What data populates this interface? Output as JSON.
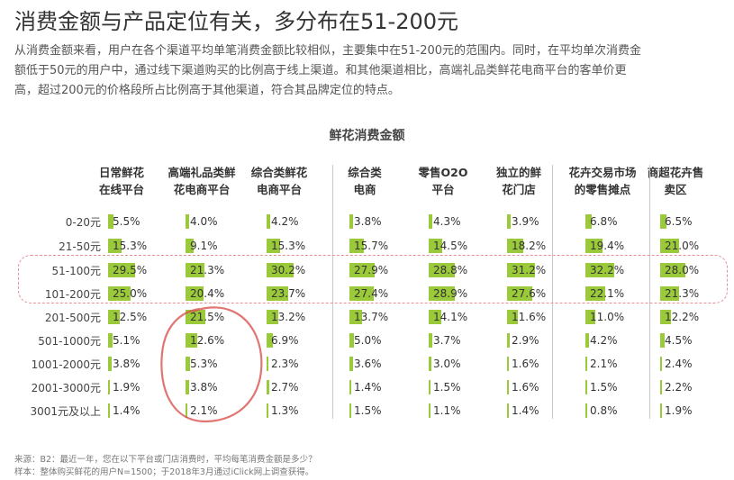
{
  "title": "消费金额与产品定位有关，多分布在51-200元",
  "description_lines": [
    "从消费金额来看，用户在各个渠道平均单笔消费金额比较相似，主要集中在51-200元的范围内。同时，在平均单次消费金",
    "额低于50元的用户中，通过线下渠道购买的比例高于线上渠道。和其他渠道相比，高端礼品类鲜花电商平台的客单价更",
    "高，超过200元的价格段所占比例高于其他渠道，符合其品牌定位的特点。"
  ],
  "chart_data": {
    "type": "table",
    "title": "鲜花消费金额",
    "columns": [
      {
        "label": "日常鲜花\n在线平台"
      },
      {
        "label": "高端礼品类鲜\n花电商平台"
      },
      {
        "label": "综合类鲜花\n电商平台"
      },
      {
        "label": "综合类\n电商"
      },
      {
        "label": "零售O2O\n平台"
      },
      {
        "label": "独立的鲜\n花门店"
      },
      {
        "label": "花卉交易市场\n的零售摊点"
      },
      {
        "label": "商超花卉售\n卖区"
      }
    ],
    "rows": [
      "0-20元",
      "21-50元",
      "51-100元",
      "101-200元",
      "201-500元",
      "501-1000元",
      "1001-2000元",
      "2001-3000元",
      "3001元及以上"
    ],
    "values": [
      [
        5.5,
        4.0,
        4.2,
        3.8,
        4.3,
        3.9,
        6.8,
        6.5
      ],
      [
        15.3,
        9.1,
        15.3,
        15.7,
        14.5,
        18.2,
        19.4,
        21.0
      ],
      [
        29.5,
        21.3,
        30.2,
        27.9,
        28.8,
        31.2,
        32.2,
        28.0
      ],
      [
        25.0,
        20.4,
        23.7,
        27.4,
        28.9,
        27.6,
        22.1,
        21.3
      ],
      [
        12.5,
        21.5,
        13.2,
        13.7,
        14.1,
        11.6,
        11.0,
        12.2
      ],
      [
        5.1,
        12.6,
        6.9,
        5.0,
        3.7,
        2.9,
        4.2,
        4.5
      ],
      [
        3.8,
        5.3,
        2.3,
        3.6,
        3.0,
        1.6,
        2.1,
        2.4
      ],
      [
        1.9,
        3.8,
        2.7,
        1.4,
        1.5,
        1.6,
        1.5,
        2.2
      ],
      [
        1.4,
        2.1,
        1.3,
        1.5,
        1.1,
        1.4,
        0.8,
        1.9
      ]
    ],
    "labels": [
      [
        "5.5%",
        "4.0%",
        "4.2%",
        "3.8%",
        "4.3%",
        "3.9%",
        "6.8%",
        "6.5%"
      ],
      [
        "15.3%",
        "9.1%",
        "15.3%",
        "15.7%",
        "14.5%",
        "18.2%",
        "19.4%",
        "21.0%"
      ],
      [
        "29.5%",
        "21.3%",
        "30.2%",
        "27.9%",
        "28.8%",
        "31.2%",
        "32.2%",
        "28.0%"
      ],
      [
        "25.0%",
        "20.4%",
        "23.7%",
        "27.4%",
        "28.9%",
        "27.6%",
        "22.1%",
        "21.3%"
      ],
      [
        "12.5%",
        "21.5%",
        "13.2%",
        "13.7%",
        "14.1%",
        "11.6%",
        "11.0%",
        "12.2%"
      ],
      [
        "5.1%",
        "12.6%",
        "6.9%",
        "5.0%",
        "3.7%",
        "2.9%",
        "4.2%",
        "4.5%"
      ],
      [
        "3.8%",
        "5.3%",
        "2.3%",
        "3.6%",
        "3.0%",
        "1.6%",
        "2.1%",
        "2.4%"
      ],
      [
        "1.9%",
        "3.8%",
        "2.7%",
        "1.4%",
        "1.5%",
        "1.6%",
        "1.5%",
        "2.2%"
      ],
      [
        "1.4%",
        "2.1%",
        "1.3%",
        "1.5%",
        "1.1%",
        "1.4%",
        "0.8%",
        "1.9%"
      ]
    ],
    "bar_color": "#9ac93a",
    "highlight_rows": [
      "51-100元",
      "101-200元"
    ],
    "highlight_color": "#e58f9a",
    "circled_cells_column": "高端礼品类鲜花电商平台",
    "circled_color": "#d9534f"
  },
  "footnotes": [
    "来源：B2：最近一年，您在以下平台或门店消费时，平均每笔消费金额是多少？",
    "样本：整体购买鲜花的用户N=1500；于2018年3月通过iClick网上调查获得。"
  ]
}
